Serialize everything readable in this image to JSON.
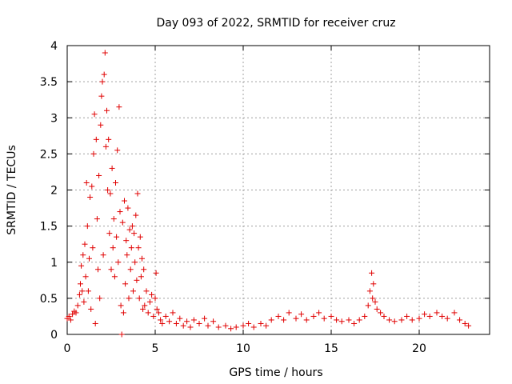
{
  "chart_data": {
    "type": "scatter",
    "title": "Day 093 of 2022, SRMTID for receiver cruz",
    "xlabel": "GPS time / hours",
    "ylabel": "SRMTID / TECUs",
    "xlim": [
      0,
      24
    ],
    "ylim": [
      0,
      4
    ],
    "x_ticks": [
      0,
      5,
      10,
      15,
      20
    ],
    "x_tick_labels": [
      "0",
      "5",
      "10",
      "15",
      "20"
    ],
    "y_ticks": [
      0,
      0.5,
      1,
      1.5,
      2,
      2.5,
      3,
      3.5,
      4
    ],
    "y_tick_labels": [
      "0",
      "0.5",
      "1",
      "1.5",
      "2",
      "2.5",
      "3",
      "3.5",
      "4"
    ],
    "grid": true,
    "marker": "+",
    "color": "#e00000",
    "series": [
      {
        "name": "SRMTID",
        "points": [
          [
            0.0,
            0.22
          ],
          [
            0.1,
            0.25
          ],
          [
            0.2,
            0.2
          ],
          [
            0.3,
            0.28
          ],
          [
            0.4,
            0.32
          ],
          [
            0.5,
            0.3
          ],
          [
            0.6,
            0.4
          ],
          [
            0.7,
            0.55
          ],
          [
            0.75,
            0.7
          ],
          [
            0.8,
            0.95
          ],
          [
            0.85,
            0.6
          ],
          [
            0.9,
            1.1
          ],
          [
            0.95,
            0.45
          ],
          [
            1.0,
            1.25
          ],
          [
            1.05,
            0.8
          ],
          [
            1.1,
            2.1
          ],
          [
            1.15,
            1.5
          ],
          [
            1.2,
            0.6
          ],
          [
            1.25,
            1.05
          ],
          [
            1.3,
            1.9
          ],
          [
            1.35,
            0.35
          ],
          [
            1.4,
            2.05
          ],
          [
            1.45,
            1.2
          ],
          [
            1.5,
            2.5
          ],
          [
            1.55,
            3.05
          ],
          [
            1.6,
            0.15
          ],
          [
            1.65,
            2.7
          ],
          [
            1.7,
            1.6
          ],
          [
            1.75,
            0.9
          ],
          [
            1.8,
            2.2
          ],
          [
            1.85,
            0.5
          ],
          [
            1.9,
            2.9
          ],
          [
            1.95,
            3.3
          ],
          [
            2.0,
            3.5
          ],
          [
            2.05,
            1.1
          ],
          [
            2.1,
            3.6
          ],
          [
            2.15,
            3.9
          ],
          [
            2.2,
            2.6
          ],
          [
            2.25,
            3.1
          ],
          [
            2.3,
            2.0
          ],
          [
            2.35,
            2.7
          ],
          [
            2.4,
            1.4
          ],
          [
            2.45,
            1.95
          ],
          [
            2.5,
            0.9
          ],
          [
            2.55,
            2.3
          ],
          [
            2.6,
            1.2
          ],
          [
            2.65,
            1.6
          ],
          [
            2.7,
            0.8
          ],
          [
            2.75,
            2.1
          ],
          [
            2.8,
            1.35
          ],
          [
            2.85,
            2.55
          ],
          [
            2.9,
            1.0
          ],
          [
            2.95,
            3.15
          ],
          [
            3.0,
            1.7
          ],
          [
            3.05,
            0.4
          ],
          [
            3.1,
            0.0
          ],
          [
            3.15,
            1.55
          ],
          [
            3.2,
            0.3
          ],
          [
            3.25,
            1.85
          ],
          [
            3.3,
            0.7
          ],
          [
            3.35,
            1.3
          ],
          [
            3.4,
            1.1
          ],
          [
            3.45,
            1.75
          ],
          [
            3.5,
            0.5
          ],
          [
            3.55,
            1.45
          ],
          [
            3.6,
            0.9
          ],
          [
            3.65,
            1.2
          ],
          [
            3.7,
            1.5
          ],
          [
            3.75,
            0.6
          ],
          [
            3.8,
            1.4
          ],
          [
            3.85,
            1.0
          ],
          [
            3.9,
            1.65
          ],
          [
            3.95,
            0.75
          ],
          [
            4.0,
            1.95
          ],
          [
            4.05,
            1.2
          ],
          [
            4.1,
            0.5
          ],
          [
            4.15,
            1.35
          ],
          [
            4.2,
            0.8
          ],
          [
            4.25,
            1.05
          ],
          [
            4.3,
            0.35
          ],
          [
            4.35,
            0.9
          ],
          [
            4.4,
            0.4
          ],
          [
            4.5,
            0.6
          ],
          [
            4.6,
            0.3
          ],
          [
            4.7,
            0.45
          ],
          [
            4.8,
            0.55
          ],
          [
            4.9,
            0.25
          ],
          [
            5.0,
            0.5
          ],
          [
            5.05,
            0.85
          ],
          [
            5.1,
            0.35
          ],
          [
            5.2,
            0.3
          ],
          [
            5.3,
            0.2
          ],
          [
            5.4,
            0.15
          ],
          [
            5.6,
            0.25
          ],
          [
            5.8,
            0.18
          ],
          [
            6.0,
            0.3
          ],
          [
            6.2,
            0.15
          ],
          [
            6.4,
            0.22
          ],
          [
            6.6,
            0.12
          ],
          [
            6.8,
            0.18
          ],
          [
            7.0,
            0.1
          ],
          [
            7.2,
            0.2
          ],
          [
            7.5,
            0.15
          ],
          [
            7.8,
            0.22
          ],
          [
            8.0,
            0.12
          ],
          [
            8.3,
            0.18
          ],
          [
            8.6,
            0.1
          ],
          [
            9.0,
            0.12
          ],
          [
            9.3,
            0.08
          ],
          [
            9.6,
            0.1
          ],
          [
            10.0,
            0.12
          ],
          [
            10.3,
            0.15
          ],
          [
            10.6,
            0.1
          ],
          [
            11.0,
            0.15
          ],
          [
            11.3,
            0.12
          ],
          [
            11.6,
            0.2
          ],
          [
            12.0,
            0.25
          ],
          [
            12.3,
            0.2
          ],
          [
            12.6,
            0.3
          ],
          [
            13.0,
            0.22
          ],
          [
            13.3,
            0.28
          ],
          [
            13.6,
            0.2
          ],
          [
            14.0,
            0.25
          ],
          [
            14.3,
            0.3
          ],
          [
            14.6,
            0.22
          ],
          [
            15.0,
            0.25
          ],
          [
            15.3,
            0.2
          ],
          [
            15.6,
            0.18
          ],
          [
            16.0,
            0.2
          ],
          [
            16.3,
            0.15
          ],
          [
            16.6,
            0.2
          ],
          [
            16.9,
            0.25
          ],
          [
            17.1,
            0.4
          ],
          [
            17.2,
            0.6
          ],
          [
            17.3,
            0.85
          ],
          [
            17.35,
            0.5
          ],
          [
            17.4,
            0.7
          ],
          [
            17.5,
            0.45
          ],
          [
            17.6,
            0.35
          ],
          [
            17.8,
            0.3
          ],
          [
            18.0,
            0.25
          ],
          [
            18.3,
            0.2
          ],
          [
            18.6,
            0.18
          ],
          [
            19.0,
            0.2
          ],
          [
            19.3,
            0.25
          ],
          [
            19.6,
            0.2
          ],
          [
            20.0,
            0.22
          ],
          [
            20.3,
            0.28
          ],
          [
            20.6,
            0.25
          ],
          [
            21.0,
            0.3
          ],
          [
            21.3,
            0.25
          ],
          [
            21.6,
            0.22
          ],
          [
            22.0,
            0.3
          ],
          [
            22.3,
            0.2
          ],
          [
            22.6,
            0.15
          ],
          [
            22.8,
            0.12
          ]
        ]
      }
    ]
  }
}
